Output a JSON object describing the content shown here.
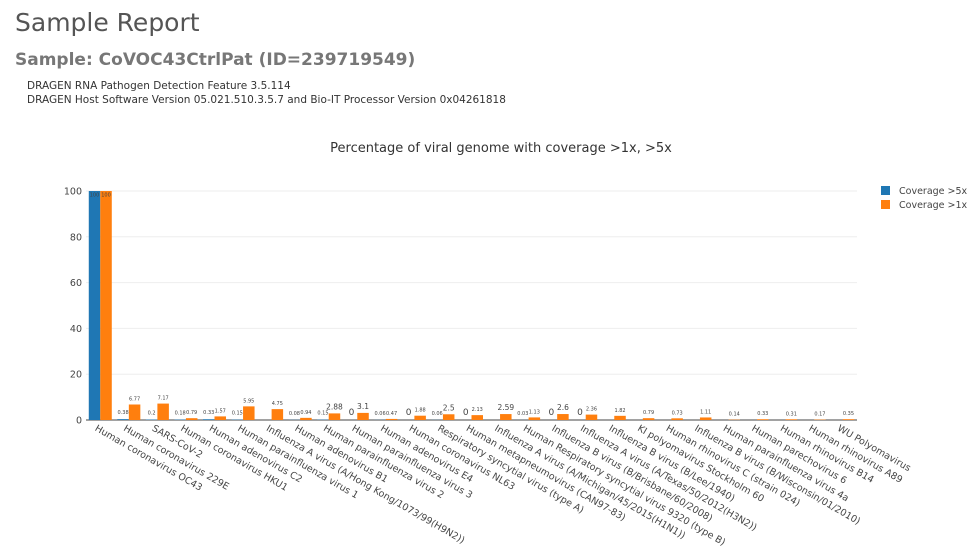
{
  "header": {
    "title": "Sample Report",
    "sample": "Sample: CoVOC43CtrlPat (ID=239719549)",
    "meta_line1": "DRAGEN RNA Pathogen Detection Feature 3.5.114",
    "meta_line2": "DRAGEN Host Software Version 05.021.510.3.5.7 and Bio-IT Processor Version 0x04261818"
  },
  "chart_data": {
    "type": "bar",
    "title": "Percentage of viral genome with coverage >1x, >5x",
    "xlabel": "",
    "ylabel": "",
    "ylim": [
      0,
      100
    ],
    "yticks": [
      0,
      20,
      40,
      60,
      80,
      100
    ],
    "grid": true,
    "legend_position": "top-right",
    "categories": [
      "Human coronavirus OC43",
      "Human coronavirus 229E",
      "SARS-CoV-2",
      "Human coronavirus HKU1",
      "Human adenovirus C2",
      "Human parainfluenza virus 1",
      "Influenza A virus (A/Hong Kong/1073/99(H9N2))",
      "Human adenovirus B1",
      "Human parainfluenza virus 2",
      "Human parainfluenza virus 3",
      "Human adenovirus E4",
      "Human coronavirus NL63",
      "Respiratory syncytial virus (type A)",
      "Human metapneumovirus (CAN97-83)",
      "Influenza A virus (A/Michigan/45/2015(H1N1))",
      "Human Respiratory syncytial virus 9320 (type B)",
      "Influenza B virus (B/Brisbane/60/2008)",
      "Influenza A virus (A/Texas/50/2012(H3N2))",
      "Influenza B virus (B/Lee/1940)",
      "KI polyomavirus Stockholm 60",
      "Human rhinovirus C (strain 024)",
      "Influenza B virus (B/Wisconsin/01/2010)",
      "Human parainfluenza virus 4a",
      "Human parechovirus 6",
      "Human rhinovirus B14",
      "Human rhinovirus A89",
      "WU Polyomavirus"
    ],
    "series": [
      {
        "name": "Coverage >5x",
        "color": "#1f77b4",
        "values": [
          100,
          0.38,
          0.2,
          0.18,
          0.33,
          0.15,
          0,
          0.08,
          0.15,
          0,
          0.06,
          0,
          0.06,
          0,
          0,
          0.03,
          0,
          0,
          0,
          0,
          0,
          0,
          0,
          0,
          0,
          0,
          0
        ],
        "labels": [
          "100",
          "0.38",
          "0.2",
          "0.18",
          "0.33",
          "0.15",
          "",
          "0.08",
          "0.15",
          "0",
          "0.06",
          "0",
          "0.06",
          "0",
          "",
          "0.03",
          "0",
          "0",
          "",
          "",
          "",
          "",
          "",
          "",
          "",
          "",
          ""
        ]
      },
      {
        "name": "Coverage >1x",
        "color": "#ff7f0e",
        "values": [
          100,
          6.77,
          7.17,
          0.79,
          1.57,
          5.95,
          4.75,
          0.94,
          2.88,
          3.1,
          0.47,
          1.88,
          2.5,
          2.13,
          2.59,
          1.13,
          2.6,
          2.36,
          1.82,
          0.79,
          0.73,
          1.11,
          0.14,
          0.33,
          0.31,
          0.17,
          0.35
        ],
        "labels": [
          "100",
          "6.77",
          "7.17",
          "0.79",
          "1.57",
          "5.95",
          "4.75",
          "0.94",
          "2.88",
          "3.1",
          "0.47",
          "1.88",
          "2.5",
          "2.13",
          "2.59",
          "1.13",
          "2.6",
          "2.36",
          "1.82",
          "0.79",
          "0.73",
          "1.11",
          "0.14",
          "0.33",
          "0.31",
          "0.17",
          "0.35"
        ]
      }
    ]
  }
}
